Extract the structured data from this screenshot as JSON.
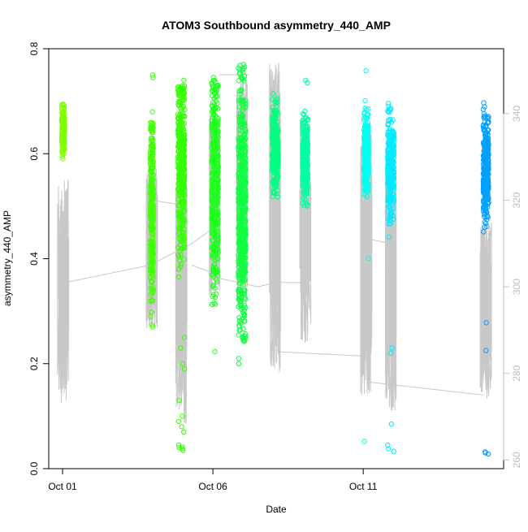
{
  "chart_data": {
    "type": "scatter",
    "title": "ATOM3 Southbound asymmetry_440_AMP",
    "xlabel": "Date",
    "ylabel": "asymmetry_440_AMP",
    "x_ticks": [
      "Oct 01",
      "Oct 06",
      "Oct 11"
    ],
    "x_tick_days": [
      1,
      6,
      11
    ],
    "xlim_days": [
      0.54,
      15.67
    ],
    "y_ticks": [
      "0.0",
      "0.2",
      "0.4",
      "0.6",
      "0.8"
    ],
    "ylim": [
      0.0,
      0.8
    ],
    "y2_ticks": [
      "260",
      "280",
      "300",
      "320",
      "340"
    ],
    "y2lim": [
      258,
      355
    ],
    "grid": false,
    "legend": "none",
    "clusters": [
      {
        "day": 1.02,
        "width": 0.1,
        "color": "#7fff00",
        "count": 160,
        "y_mean": 0.64,
        "y_sd": 0.025,
        "y_min": 0.545,
        "y_max": 0.695,
        "outliers": []
      },
      {
        "day": 3.97,
        "width": 0.1,
        "color": "#40ff00",
        "count": 300,
        "y_mean": 0.5,
        "y_sd": 0.09,
        "y_min": 0.26,
        "y_max": 0.66,
        "outliers": [
          0.745,
          0.75,
          0.68,
          0.29,
          0.27
        ]
      },
      {
        "day": 4.95,
        "width": 0.22,
        "color": "#33ff00",
        "count": 400,
        "y_mean": 0.58,
        "y_sd": 0.09,
        "y_min": 0.29,
        "y_max": 0.73,
        "outliers": [
          0.04,
          0.035,
          0.045,
          0.038,
          0.042,
          0.1,
          0.09,
          0.08,
          0.07,
          0.13,
          0.19,
          0.2,
          0.25,
          0.23,
          0.74
        ]
      },
      {
        "day": 6.07,
        "width": 0.22,
        "color": "#20ff20",
        "count": 450,
        "y_mean": 0.55,
        "y_sd": 0.1,
        "y_min": 0.27,
        "y_max": 0.74,
        "outliers": [
          0.223,
          0.745
        ]
      },
      {
        "day": 6.97,
        "width": 0.25,
        "color": "#10ff40",
        "count": 550,
        "y_mean": 0.5,
        "y_sd": 0.12,
        "y_min": 0.24,
        "y_max": 0.77,
        "outliers": [
          0.2,
          0.21,
          0.765,
          0.77
        ]
      },
      {
        "day": 8.07,
        "width": 0.2,
        "color": "#00ff80",
        "count": 300,
        "y_mean": 0.61,
        "y_sd": 0.04,
        "y_min": 0.47,
        "y_max": 0.72,
        "outliers": []
      },
      {
        "day": 9.07,
        "width": 0.18,
        "color": "#00ffa0",
        "count": 250,
        "y_mean": 0.59,
        "y_sd": 0.04,
        "y_min": 0.5,
        "y_max": 0.74,
        "outliers": [
          0.735,
          0.74
        ]
      },
      {
        "day": 11.1,
        "width": 0.16,
        "color": "#00ffee",
        "count": 280,
        "y_mean": 0.6,
        "y_sd": 0.04,
        "y_min": 0.47,
        "y_max": 0.72,
        "outliers": [
          0.758,
          0.4,
          0.052
        ]
      },
      {
        "day": 11.92,
        "width": 0.22,
        "color": "#00eaff",
        "count": 300,
        "y_mean": 0.58,
        "y_sd": 0.05,
        "y_min": 0.33,
        "y_max": 0.7,
        "outliers": [
          0.23,
          0.22,
          0.085,
          0.045,
          0.038,
          0.033
        ]
      },
      {
        "day": 15.08,
        "width": 0.18,
        "color": "#00a0ff",
        "count": 350,
        "y_mean": 0.57,
        "y_sd": 0.05,
        "y_min": 0.45,
        "y_max": 0.715,
        "outliers": [
          0.03,
          0.028,
          0.032,
          0.028,
          0.225,
          0.278
        ]
      }
    ],
    "trace_series": [
      {
        "day": 1.02,
        "y2_range": [
          273,
          325
        ]
      },
      {
        "day": 3.97,
        "y2_range": [
          290,
          328
        ]
      },
      {
        "day": 4.95,
        "y2_range": [
          268,
          330
        ]
      },
      {
        "day": 6.07,
        "y2_range": [
          298,
          340
        ]
      },
      {
        "day": 6.97,
        "y2_range": [
          295,
          348
        ]
      },
      {
        "day": 8.07,
        "y2_range": [
          280,
          352
        ]
      },
      {
        "day": 9.07,
        "y2_range": [
          287,
          340
        ]
      },
      {
        "day": 11.1,
        "y2_range": [
          275,
          337
        ]
      },
      {
        "day": 11.92,
        "y2_range": [
          271,
          328
        ]
      },
      {
        "day": 15.08,
        "y2_range": [
          274,
          315
        ]
      }
    ],
    "trace_links": [
      [
        [
          1.1,
          301
        ],
        [
          3.9,
          305
        ],
        [
          5.3,
          310
        ],
        [
          5.9,
          313
        ]
      ],
      [
        [
          3.97,
          320
        ],
        [
          4.9,
          319
        ]
      ],
      [
        [
          5.3,
          305
        ],
        [
          6.07,
          303
        ]
      ],
      [
        [
          6.2,
          302
        ],
        [
          7.5,
          300
        ],
        [
          8.1,
          301
        ]
      ],
      [
        [
          6.2,
          349
        ],
        [
          7.2,
          349
        ]
      ],
      [
        [
          8.2,
          301
        ],
        [
          9.0,
          301
        ]
      ],
      [
        [
          8.2,
          285
        ],
        [
          11.0,
          284
        ]
      ],
      [
        [
          11.2,
          311
        ],
        [
          11.9,
          310
        ]
      ],
      [
        [
          11.2,
          278
        ],
        [
          15.0,
          275
        ]
      ]
    ]
  }
}
